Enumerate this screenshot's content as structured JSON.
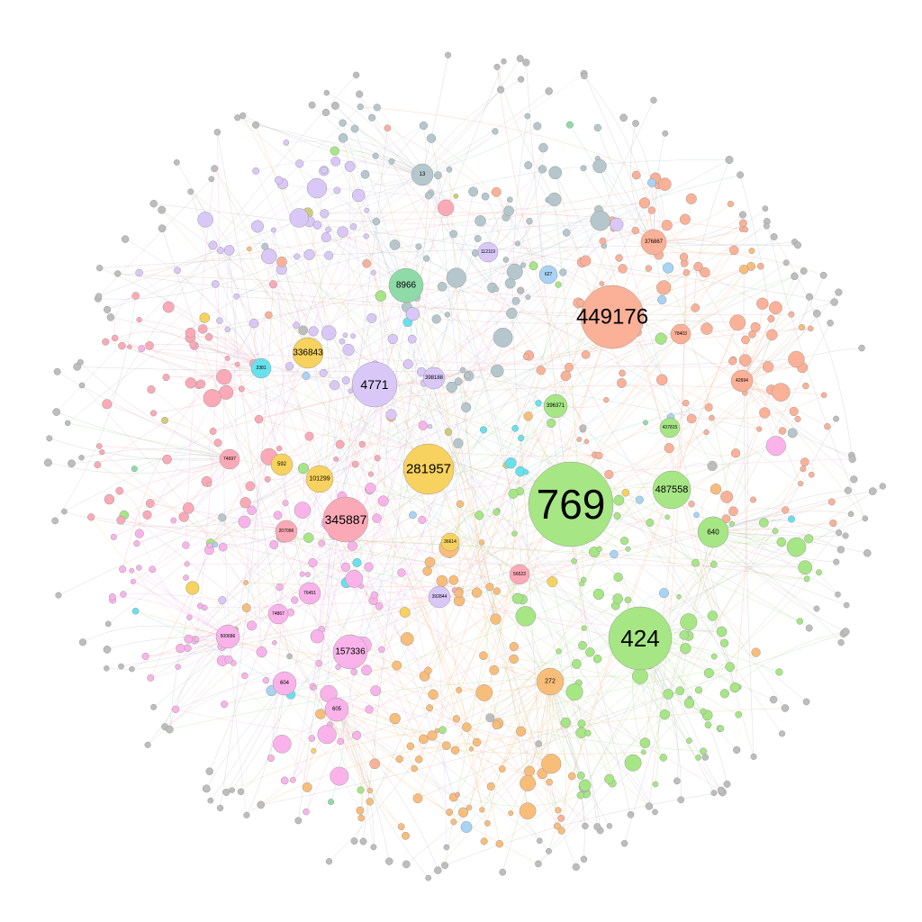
{
  "palette": {
    "green": "#a6e685",
    "salmon": "#fbb197",
    "pink": "#fca9b7",
    "yellow": "#f8d25e",
    "lavender": "#d9c8f7",
    "mint": "#8fdba7",
    "cyan": "#67e1ee",
    "slate": "#b5c7cc",
    "magenta": "#f9b3ea",
    "orange": "#f9bd7a",
    "olive": "#cfcc7c",
    "sky": "#a8d3f5",
    "gray": "#bdbdbd"
  },
  "hubs": [
    {
      "label": "769",
      "group": "green"
    },
    {
      "label": "449176",
      "group": "salmon"
    },
    {
      "label": "424",
      "group": "green"
    },
    {
      "label": "281957",
      "group": "yellow"
    },
    {
      "label": "4771",
      "group": "lavender"
    },
    {
      "label": "345887",
      "group": "pink"
    },
    {
      "label": "487558",
      "group": "green"
    },
    {
      "label": "8966",
      "group": "mint"
    },
    {
      "label": "157336",
      "group": "magenta"
    },
    {
      "label": "336843",
      "group": "yellow"
    },
    {
      "label": "640",
      "group": "green"
    },
    {
      "label": "272",
      "group": "orange"
    },
    {
      "label": "101299",
      "group": "yellow"
    },
    {
      "label": "376867",
      "group": "salmon"
    },
    {
      "label": "13",
      "group": "slate"
    },
    {
      "label": "396371",
      "group": "green"
    },
    {
      "label": "398188",
      "group": "lavender"
    },
    {
      "label": "592",
      "group": "yellow"
    },
    {
      "label": "500686",
      "group": "magenta"
    },
    {
      "label": "604",
      "group": "magenta"
    },
    {
      "label": "605",
      "group": "magenta"
    },
    {
      "label": "207096",
      "group": "pink"
    },
    {
      "label": "74867",
      "group": "magenta"
    },
    {
      "label": "437815",
      "group": "green"
    },
    {
      "label": "42694",
      "group": "salmon"
    },
    {
      "label": "627",
      "group": "sky"
    },
    {
      "label": "392844",
      "group": "lavender"
    },
    {
      "label": "76451",
      "group": "magenta"
    },
    {
      "label": "56523",
      "group": "pink"
    },
    {
      "label": "36614",
      "group": "yellow"
    },
    {
      "label": "112119",
      "group": "lavender"
    },
    {
      "label": "78403",
      "group": "salmon"
    },
    {
      "label": "2381",
      "group": "cyan"
    },
    {
      "label": "74697",
      "group": "pink"
    }
  ]
}
